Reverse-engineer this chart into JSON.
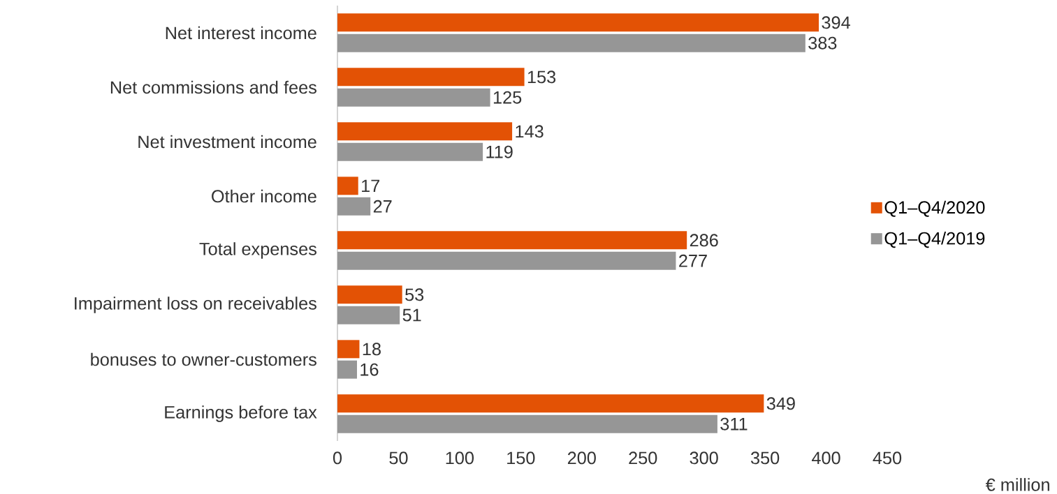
{
  "chart_data": {
    "type": "bar",
    "orientation": "horizontal",
    "categories": [
      "Net interest income",
      "Net commissions and fees",
      "Net investment income",
      "Other income",
      "Total expenses",
      "Impairment loss on receivables",
      "bonuses to owner-customers",
      "Earnings before tax"
    ],
    "series": [
      {
        "name": "Q1–Q4/2020",
        "color": "#e35205",
        "values": [
          394,
          153,
          143,
          17,
          286,
          53,
          18,
          349
        ]
      },
      {
        "name": "Q1–Q4/2019",
        "color": "#969696",
        "values": [
          383,
          125,
          119,
          27,
          277,
          51,
          16,
          311
        ]
      }
    ],
    "xlabel": "€ million",
    "xlim": [
      0,
      450
    ],
    "xticks": [
      0,
      50,
      100,
      150,
      200,
      250,
      300,
      350,
      400,
      450
    ],
    "data_labels": true,
    "legend": "right",
    "grid": false
  }
}
